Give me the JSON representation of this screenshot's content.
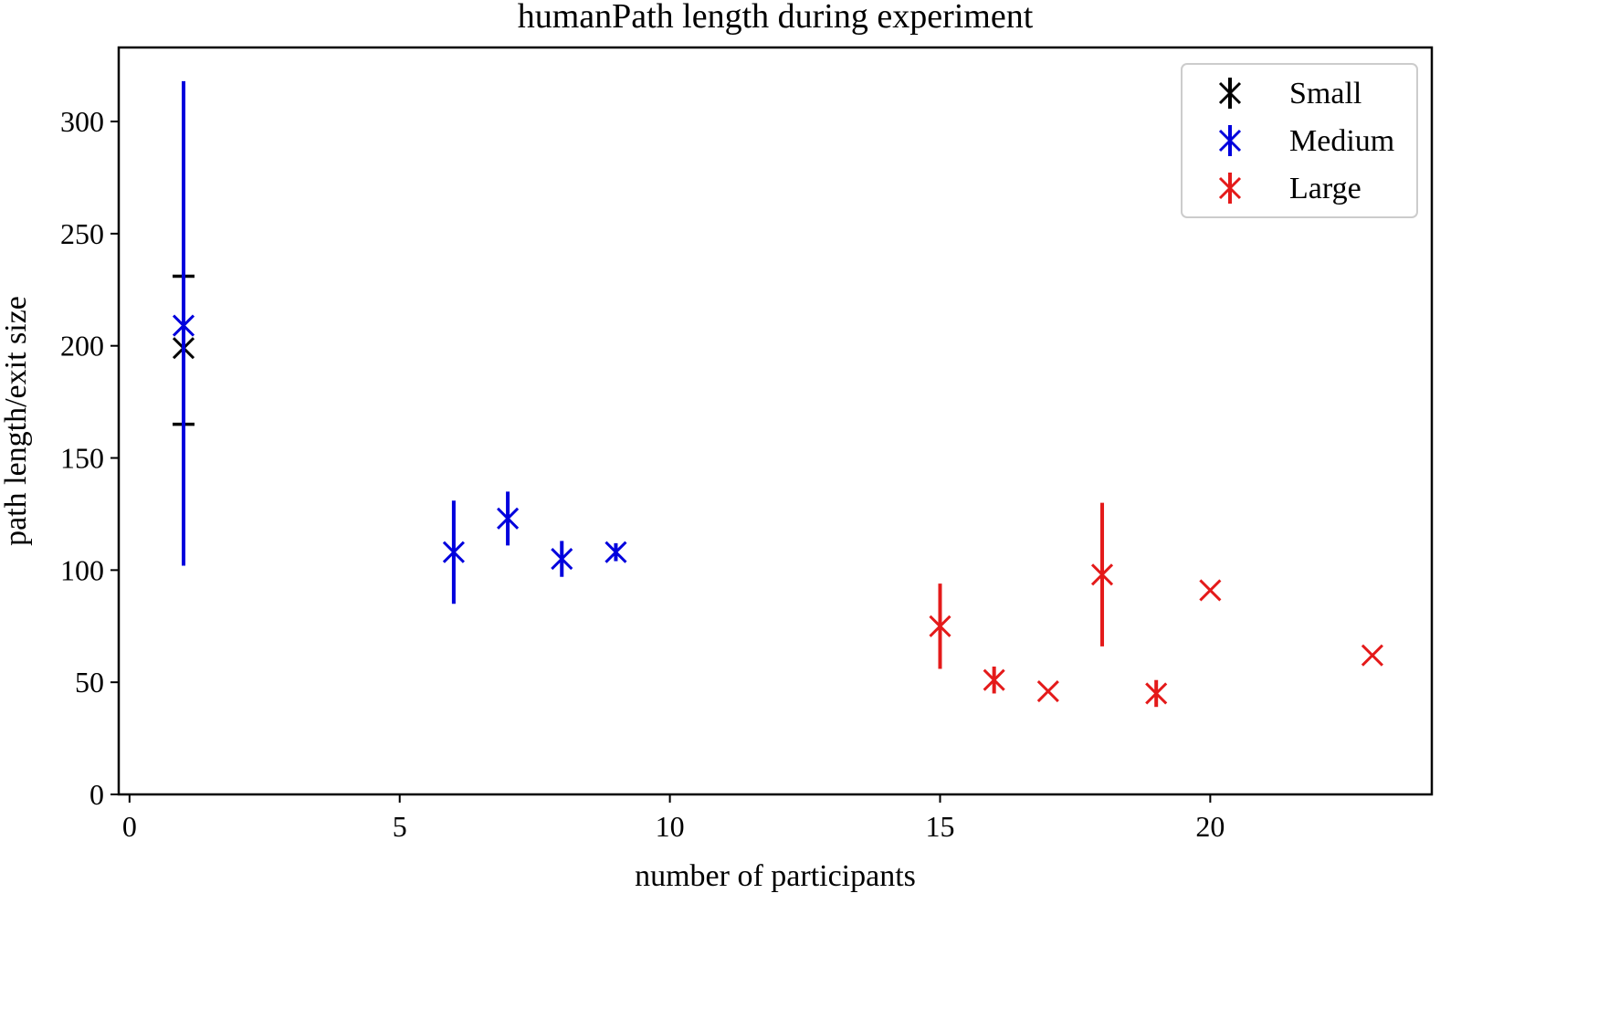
{
  "chart_data": {
    "type": "scatter",
    "title": "humanPath length during experiment",
    "xlabel": "number of participants",
    "ylabel": "path length/exit size",
    "xlim": [
      -0.2,
      24.1
    ],
    "ylim": [
      0,
      333
    ],
    "xticks": [
      0,
      5,
      10,
      15,
      20
    ],
    "yticks": [
      0,
      50,
      100,
      150,
      200,
      250,
      300
    ],
    "marker": "x",
    "grid": false,
    "legend_position": "top-right",
    "series": [
      {
        "name": "Small",
        "color": "#000000",
        "capped": true,
        "points": [
          {
            "x": 1,
            "y": 199,
            "yerr": [
              165,
              231
            ]
          }
        ]
      },
      {
        "name": "Medium",
        "color": "#0000dd",
        "capped": false,
        "points": [
          {
            "x": 1,
            "y": 209,
            "yerr": [
              102,
              318
            ]
          },
          {
            "x": 6,
            "y": 108,
            "yerr": [
              85,
              131
            ]
          },
          {
            "x": 7,
            "y": 123,
            "yerr": [
              111,
              135
            ]
          },
          {
            "x": 8,
            "y": 105,
            "yerr": [
              97,
              113
            ]
          },
          {
            "x": 9,
            "y": 108,
            "yerr": [
              104,
              112
            ]
          }
        ]
      },
      {
        "name": "Large",
        "color": "#e41a1a",
        "capped": false,
        "points": [
          {
            "x": 15,
            "y": 75,
            "yerr": [
              56,
              94
            ]
          },
          {
            "x": 16,
            "y": 51,
            "yerr": [
              45,
              57
            ]
          },
          {
            "x": 17,
            "y": 46,
            "yerr": null
          },
          {
            "x": 18,
            "y": 98,
            "yerr": [
              66,
              130
            ]
          },
          {
            "x": 19,
            "y": 45,
            "yerr": [
              39,
              51
            ]
          },
          {
            "x": 20,
            "y": 91,
            "yerr": null
          },
          {
            "x": 23,
            "y": 62,
            "yerr": null
          }
        ]
      }
    ]
  }
}
